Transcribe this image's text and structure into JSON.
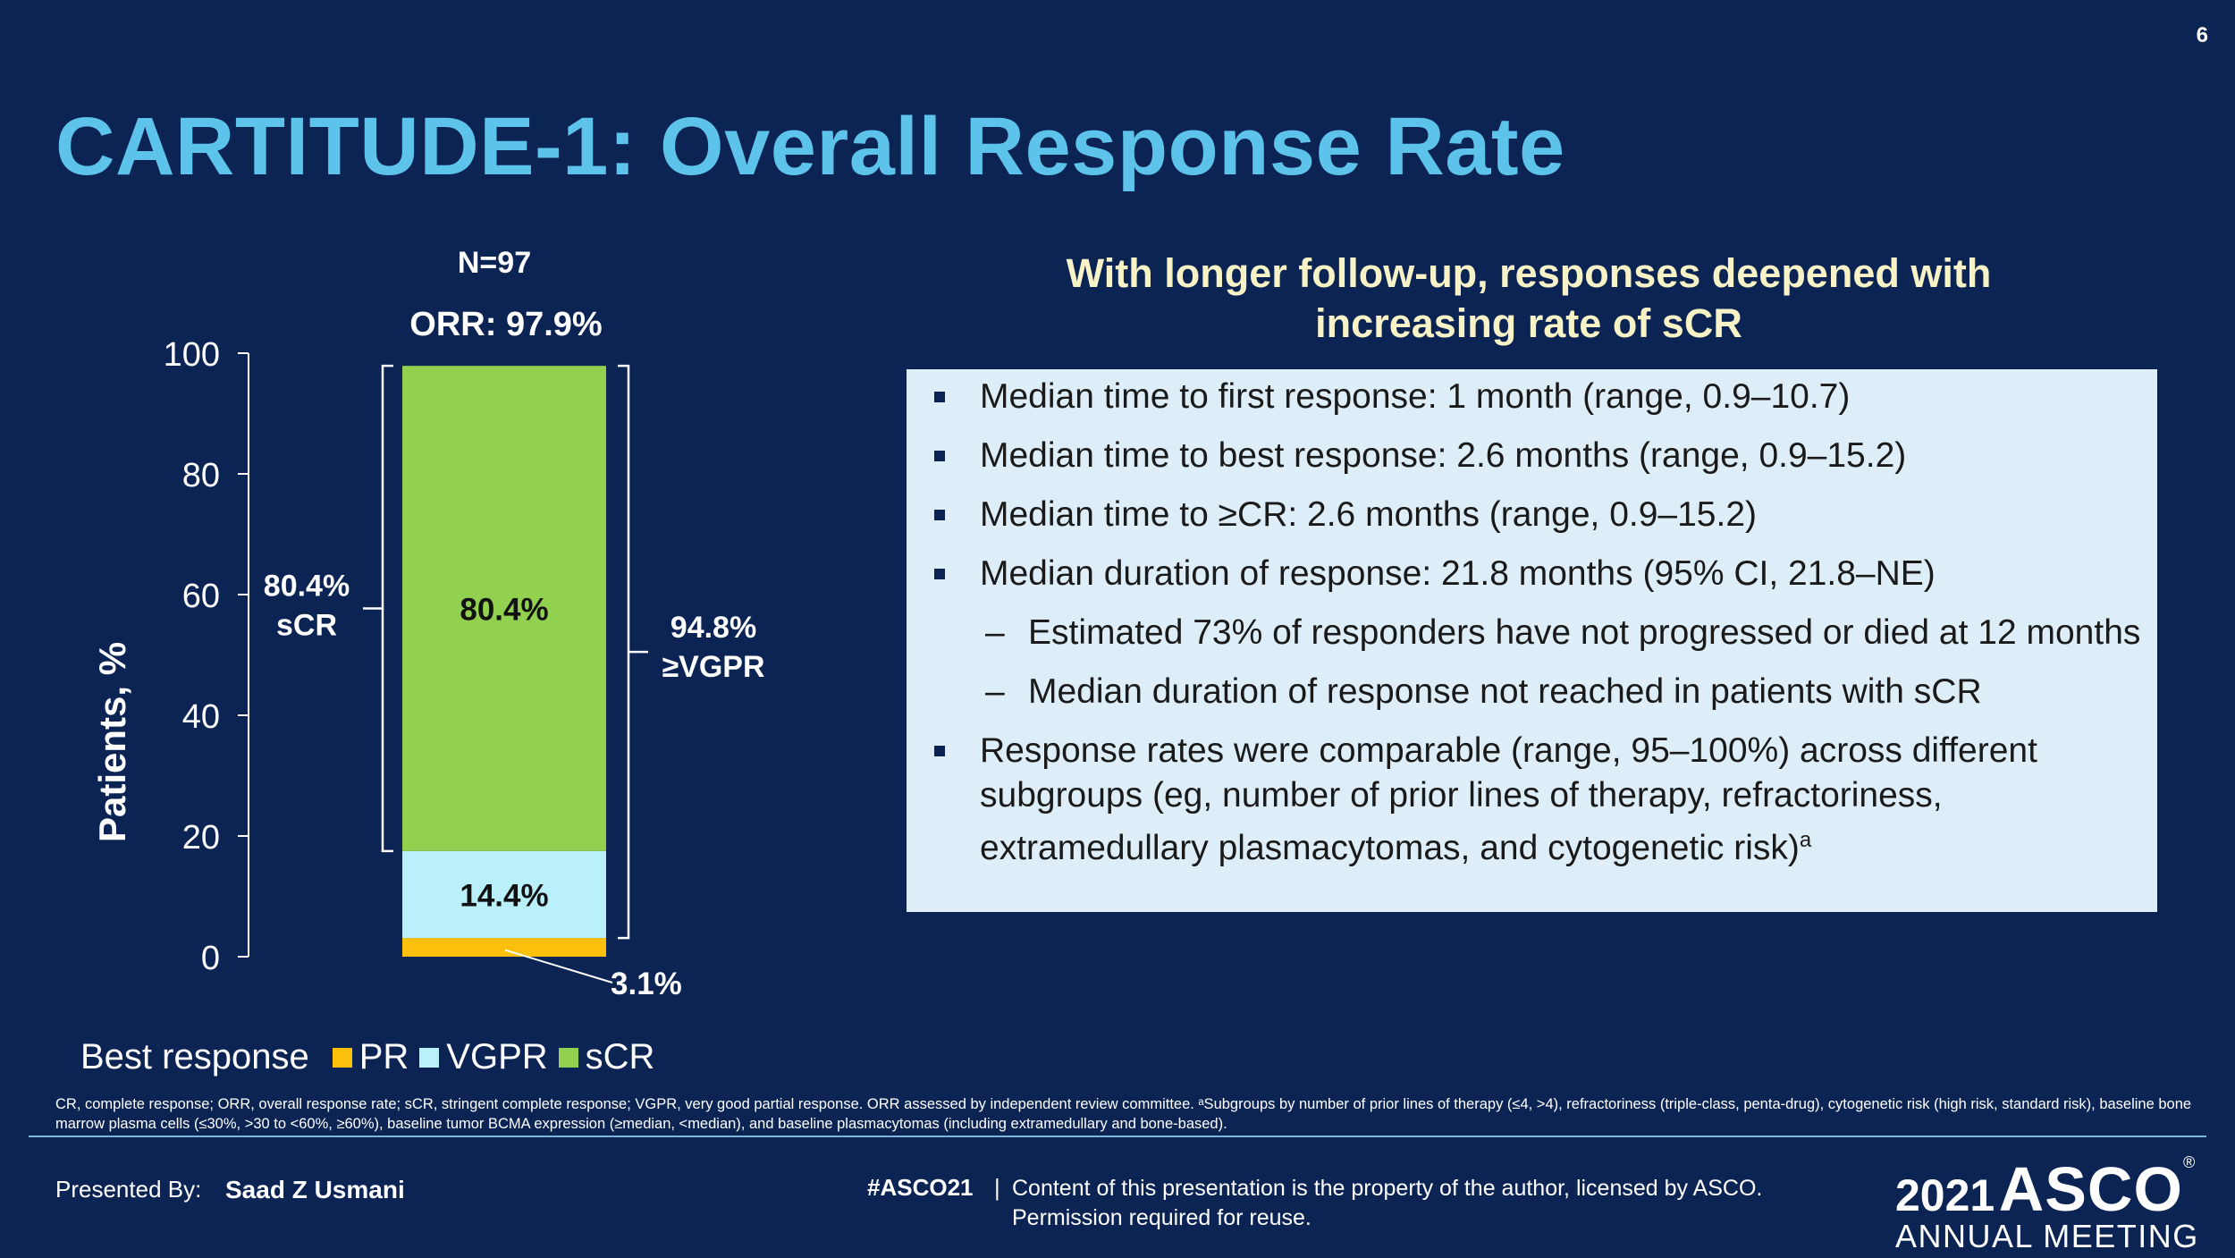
{
  "slide_number": "6",
  "title": "CARTITUDE-1: Overall Response Rate",
  "chart_data": {
    "type": "bar",
    "stacked": true,
    "categories": [
      "Best response"
    ],
    "n_label": "N=97",
    "orr_label": "ORR: 97.9%",
    "ylabel": "Patients, %",
    "ylim": [
      0,
      100
    ],
    "yticks": [
      "0",
      "20",
      "40",
      "60",
      "80",
      "100"
    ],
    "series": [
      {
        "name": "PR",
        "values": [
          3.1
        ],
        "label": "3.1%",
        "color": "#fbbf0c"
      },
      {
        "name": "VGPR",
        "values": [
          14.4
        ],
        "label": "14.4%",
        "color": "#b9f0fa"
      },
      {
        "name": "sCR",
        "values": [
          80.4
        ],
        "label": "80.4%",
        "color": "#92d050"
      }
    ],
    "left_bracket": {
      "range": [
        17.5,
        97.9
      ],
      "label_line1": "80.4%",
      "label_line2": "sCR"
    },
    "right_bracket": {
      "range": [
        3.1,
        97.9
      ],
      "label_line1": "94.8%",
      "label_line2": "≥VGPR"
    },
    "legend": {
      "title": "Best response",
      "items": [
        {
          "name": "PR",
          "color": "#fbbf0c"
        },
        {
          "name": "VGPR",
          "color": "#b9f0fa"
        },
        {
          "name": "sCR",
          "color": "#92d050"
        }
      ]
    }
  },
  "right_panel": {
    "subtitle_line1": "With longer follow-up, responses deepened with",
    "subtitle_line2": "increasing rate of sCR",
    "bullets": [
      "Median time to first response: 1 month (range, 0.9–10.7)",
      "Median time to best response: 2.6 months (range, 0.9–15.2)",
      "Median time to ≥CR: 2.6 months (range, 0.9–15.2)",
      "Median duration of response: 21.8 months (95% CI, 21.8–NE)"
    ],
    "sub_bullets": [
      "Estimated 73% of responders have not progressed or died at 12 months",
      "Median duration of response not reached in patients with sCR"
    ],
    "dash": "–",
    "last_bullet": "Response rates were comparable (range, 95–100%) across different subgroups (eg, number of prior lines of therapy, refractoriness, extramedullary plasmacytomas, and cytogenetic risk)",
    "last_bullet_sup": "a"
  },
  "footnote": "CR, complete response; ORR, overall response rate; sCR, stringent complete response; VGPR, very good partial response. ORR assessed by independent review committee. ᵃSubgroups by number of prior lines of therapy (≤4, >4), refractoriness (triple-class, penta-drug), cytogenetic risk (high risk, standard risk), baseline bone marrow plasma cells (≤30%, >30 to <60%, ≥60%), baseline tumor BCMA expression (≥median, <median), and baseline plasmacytomas (including extramedullary and bone-based).",
  "footer": {
    "presented_by_label": "Presented By:",
    "presenter": "Saad Z Usmani",
    "hashtag": "#ASCO21",
    "separator": "|",
    "rights": "Content of this presentation is the property of the author, licensed by ASCO. Permission required for reuse.",
    "logo_year": "2021",
    "logo_name": "ASCO",
    "logo_reg": "®",
    "logo_sub": "ANNUAL MEETING"
  }
}
